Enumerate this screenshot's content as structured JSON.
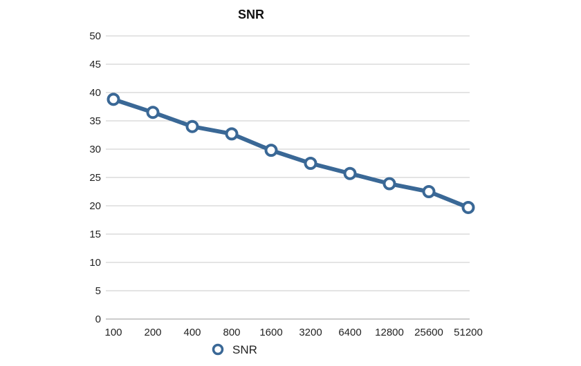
{
  "chart_data": {
    "type": "line",
    "title": "SNR",
    "xlabel": "",
    "ylabel": "",
    "categories": [
      "100",
      "200",
      "400",
      "800",
      "1600",
      "3200",
      "6400",
      "12800",
      "25600",
      "51200"
    ],
    "series": [
      {
        "name": "SNR",
        "values": [
          38.8,
          36.5,
          34.0,
          32.7,
          29.8,
          27.5,
          25.7,
          23.9,
          22.5,
          19.7
        ]
      }
    ],
    "ylim": [
      0,
      50
    ],
    "yticks": [
      "0",
      "5",
      "10",
      "15",
      "20",
      "25",
      "30",
      "35",
      "40",
      "45",
      "50"
    ],
    "grid": true,
    "legend": "bottom",
    "colors": {
      "series": "#3a6896",
      "grid": "#c8c8c8",
      "marker_fill": "#ffffff"
    }
  }
}
